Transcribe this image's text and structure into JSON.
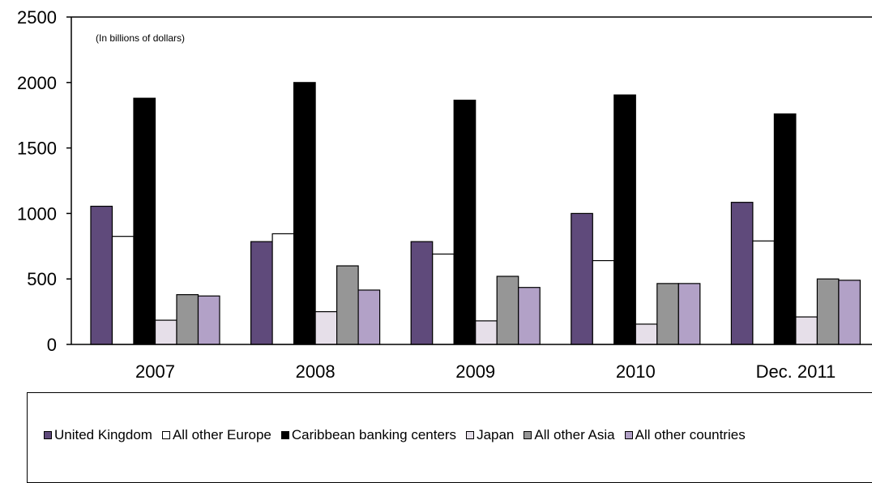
{
  "chart_data": {
    "type": "bar",
    "subtitle": "(In billions of dollars)",
    "categories": [
      "2007",
      "2008",
      "2009",
      "2010",
      "Dec. 2011"
    ],
    "y_ticks": [
      "0",
      "500",
      "1000",
      "1500",
      "2000",
      "2500"
    ],
    "ylim": [
      0,
      2500
    ],
    "grid": false,
    "legend_position": "bottom",
    "series": [
      {
        "name": "United Kingdom",
        "color": "#5f4a7b",
        "values": [
          1055,
          785,
          785,
          1000,
          1085
        ]
      },
      {
        "name": "All other Europe",
        "color": "#ffffff",
        "values": [
          825,
          845,
          690,
          640,
          790
        ]
      },
      {
        "name": "Caribbean banking centers",
        "color": "#000000",
        "values": [
          1880,
          2000,
          1865,
          1905,
          1760
        ]
      },
      {
        "name": "Japan",
        "color": "#e6dfe9",
        "values": [
          185,
          250,
          180,
          155,
          210
        ]
      },
      {
        "name": "All other Asia",
        "color": "#969696",
        "values": [
          380,
          600,
          520,
          465,
          500
        ]
      },
      {
        "name": "All other countries",
        "color": "#b2a1c7",
        "values": [
          370,
          415,
          435,
          465,
          490
        ]
      }
    ]
  }
}
